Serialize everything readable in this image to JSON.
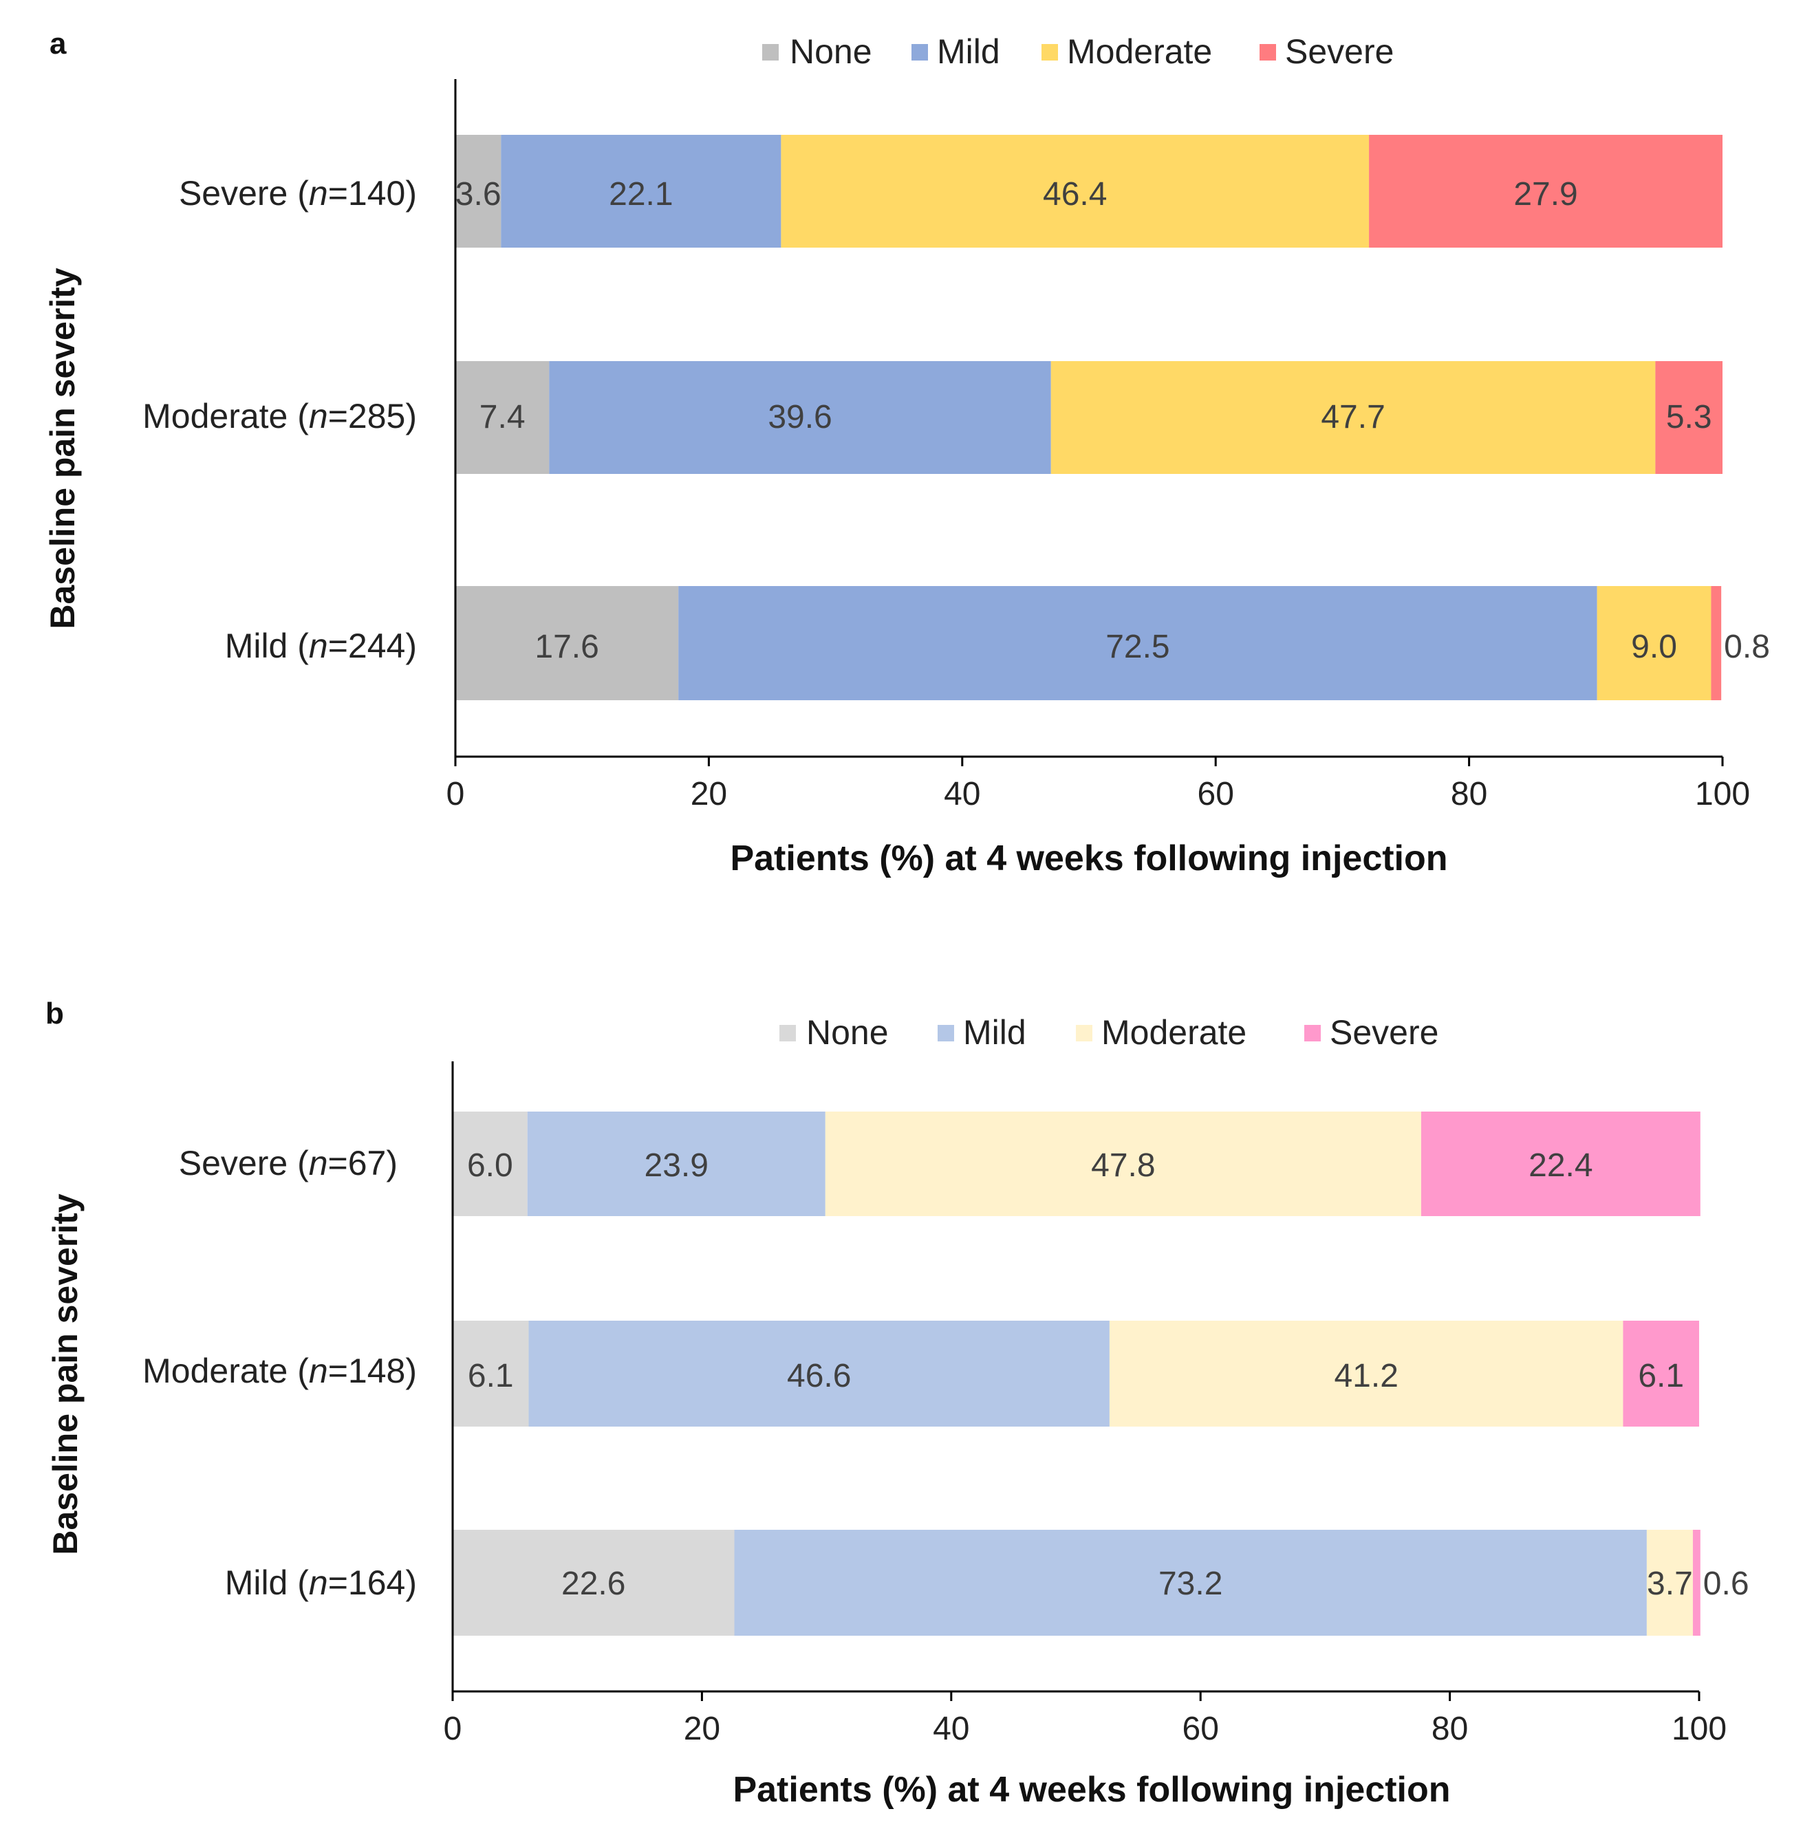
{
  "chart_data": [
    {
      "type": "bar",
      "orientation": "horizontal",
      "stacked": true,
      "panel": "a",
      "ylabel": "Baseline pain severity",
      "xlabel": "Patients (%) at 4 weeks following injection",
      "xlim": [
        0,
        100
      ],
      "xticks": [
        0,
        20,
        40,
        60,
        80,
        100
      ],
      "categories": [
        {
          "label": "Severe (",
          "n": "n",
          "count": "=140)"
        },
        {
          "label": "Moderate (",
          "n": "n",
          "count": "=285)"
        },
        {
          "label": "Mild (",
          "n": "n",
          "count": "=244)"
        }
      ],
      "series": [
        {
          "name": "None",
          "color": "#BFBFBF",
          "values": [
            3.6,
            7.4,
            17.6
          ],
          "labels": [
            "3.6",
            "7.4",
            "17.6"
          ]
        },
        {
          "name": "Mild",
          "color": "#8EA9DB",
          "values": [
            22.1,
            39.6,
            72.5
          ],
          "labels": [
            "22.1",
            "39.6",
            "72.5"
          ]
        },
        {
          "name": "Moderate",
          "color": "#FFD966",
          "values": [
            46.4,
            47.7,
            9.0
          ],
          "labels": [
            "46.4",
            "47.7",
            "9.0"
          ]
        },
        {
          "name": "Severe",
          "color": "#FF7C80",
          "values": [
            27.9,
            5.3,
            0.8
          ],
          "labels": [
            "27.9",
            "5.3",
            "0.8"
          ]
        }
      ]
    },
    {
      "type": "bar",
      "orientation": "horizontal",
      "stacked": true,
      "panel": "b",
      "ylabel": "Baseline pain severity",
      "xlabel": "Patients (%) at 4 weeks following injection",
      "xlim": [
        0,
        100
      ],
      "xticks": [
        0,
        20,
        40,
        60,
        80,
        100
      ],
      "categories": [
        {
          "label": "Severe (",
          "n": "n",
          "count": "=67)"
        },
        {
          "label": "Moderate (",
          "n": "n",
          "count": "=148)"
        },
        {
          "label": "Mild (",
          "n": "n",
          "count": "=164)"
        }
      ],
      "series": [
        {
          "name": "None",
          "color": "#D9D9D9",
          "values": [
            6.0,
            6.1,
            22.6
          ],
          "labels": [
            "6.0",
            "6.1",
            "22.6"
          ]
        },
        {
          "name": "Mild",
          "color": "#B4C7E7",
          "values": [
            23.9,
            46.6,
            73.2
          ],
          "labels": [
            "23.9",
            "46.6",
            "73.2"
          ]
        },
        {
          "name": "Moderate",
          "color": "#FFF2CC",
          "values": [
            47.8,
            41.2,
            3.7
          ],
          "labels": [
            "47.8",
            "41.2",
            "3.7"
          ]
        },
        {
          "name": "Severe",
          "color": "#FF99CC",
          "values": [
            22.4,
            6.1,
            0.6
          ],
          "labels": [
            "22.4",
            "6.1",
            "0.6"
          ]
        }
      ]
    }
  ]
}
